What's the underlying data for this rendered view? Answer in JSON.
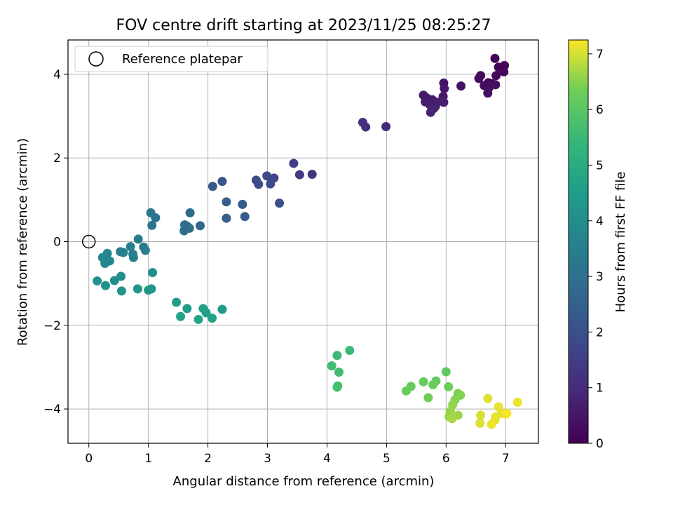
{
  "chart_data": {
    "type": "scatter",
    "title": "FOV centre drift starting at 2023/11/25 08:25:27",
    "xlabel": "Angular distance from reference (arcmin)",
    "ylabel": "Rotation from reference (arcmin)",
    "xlim": [
      -0.35,
      7.55
    ],
    "ylim": [
      -4.82,
      4.82
    ],
    "xticks": [
      0,
      1,
      2,
      3,
      4,
      5,
      6,
      7
    ],
    "yticks": [
      -4,
      -2,
      0,
      2,
      4
    ],
    "grid": true,
    "colormap": "viridis",
    "colorbar": {
      "label": "Hours from first FF file",
      "range": [
        0,
        7.25
      ],
      "ticks": [
        0,
        1,
        2,
        3,
        4,
        5,
        6,
        7
      ]
    },
    "legend": {
      "placement": "top-left",
      "entries": [
        "Reference platepar"
      ]
    },
    "reference": {
      "x": 0,
      "y": 0,
      "label": "Reference platepar"
    },
    "points": [
      {
        "x": 6.82,
        "y": 4.38,
        "c": 0.05
      },
      {
        "x": 6.98,
        "y": 4.21,
        "c": 0.08
      },
      {
        "x": 6.88,
        "y": 4.17,
        "c": 0.1
      },
      {
        "x": 6.97,
        "y": 4.06,
        "c": 0.12
      },
      {
        "x": 6.84,
        "y": 3.97,
        "c": 0.15
      },
      {
        "x": 6.58,
        "y": 3.97,
        "c": 0.18
      },
      {
        "x": 6.55,
        "y": 3.9,
        "c": 0.2
      },
      {
        "x": 6.71,
        "y": 3.8,
        "c": 0.22
      },
      {
        "x": 6.64,
        "y": 3.73,
        "c": 0.25
      },
      {
        "x": 6.77,
        "y": 3.78,
        "c": 0.27
      },
      {
        "x": 6.83,
        "y": 3.75,
        "c": 0.3
      },
      {
        "x": 6.72,
        "y": 3.68,
        "c": 0.32
      },
      {
        "x": 6.7,
        "y": 3.55,
        "c": 0.35
      },
      {
        "x": 6.25,
        "y": 3.72,
        "c": 0.4
      },
      {
        "x": 5.96,
        "y": 3.79,
        "c": 0.45
      },
      {
        "x": 5.97,
        "y": 3.66,
        "c": 0.48
      },
      {
        "x": 5.95,
        "y": 3.47,
        "c": 0.5
      },
      {
        "x": 5.62,
        "y": 3.5,
        "c": 0.55
      },
      {
        "x": 5.68,
        "y": 3.43,
        "c": 0.58
      },
      {
        "x": 5.77,
        "y": 3.39,
        "c": 0.6
      },
      {
        "x": 5.65,
        "y": 3.34,
        "c": 0.62
      },
      {
        "x": 5.85,
        "y": 3.33,
        "c": 0.65
      },
      {
        "x": 5.96,
        "y": 3.33,
        "c": 0.68
      },
      {
        "x": 5.73,
        "y": 3.27,
        "c": 0.7
      },
      {
        "x": 5.82,
        "y": 3.23,
        "c": 0.72
      },
      {
        "x": 5.79,
        "y": 3.18,
        "c": 0.75
      },
      {
        "x": 5.74,
        "y": 3.09,
        "c": 0.78
      },
      {
        "x": 4.6,
        "y": 2.85,
        "c": 1.1
      },
      {
        "x": 4.65,
        "y": 2.74,
        "c": 1.12
      },
      {
        "x": 4.99,
        "y": 2.75,
        "c": 1.0
      },
      {
        "x": 3.44,
        "y": 1.87,
        "c": 1.5
      },
      {
        "x": 3.54,
        "y": 1.6,
        "c": 1.4
      },
      {
        "x": 3.75,
        "y": 1.61,
        "c": 1.35
      },
      {
        "x": 2.99,
        "y": 1.57,
        "c": 1.8
      },
      {
        "x": 3.11,
        "y": 1.52,
        "c": 1.75
      },
      {
        "x": 2.81,
        "y": 1.47,
        "c": 1.9
      },
      {
        "x": 2.85,
        "y": 1.37,
        "c": 1.95
      },
      {
        "x": 3.05,
        "y": 1.38,
        "c": 1.85
      },
      {
        "x": 2.24,
        "y": 1.44,
        "c": 2.2
      },
      {
        "x": 2.08,
        "y": 1.32,
        "c": 2.3
      },
      {
        "x": 2.31,
        "y": 0.95,
        "c": 2.4
      },
      {
        "x": 3.2,
        "y": 0.92,
        "c": 2.0
      },
      {
        "x": 2.58,
        "y": 0.89,
        "c": 2.3
      },
      {
        "x": 2.62,
        "y": 0.6,
        "c": 2.35
      },
      {
        "x": 2.31,
        "y": 0.56,
        "c": 2.45
      },
      {
        "x": 1.7,
        "y": 0.69,
        "c": 2.8
      },
      {
        "x": 1.04,
        "y": 0.69,
        "c": 3.2
      },
      {
        "x": 1.12,
        "y": 0.57,
        "c": 3.1
      },
      {
        "x": 1.06,
        "y": 0.39,
        "c": 3.15
      },
      {
        "x": 1.61,
        "y": 0.4,
        "c": 2.9
      },
      {
        "x": 1.65,
        "y": 0.37,
        "c": 2.85
      },
      {
        "x": 1.87,
        "y": 0.38,
        "c": 2.75
      },
      {
        "x": 1.69,
        "y": 0.32,
        "c": 2.95
      },
      {
        "x": 1.6,
        "y": 0.26,
        "c": 2.9
      },
      {
        "x": 0.83,
        "y": 0.06,
        "c": 3.3
      },
      {
        "x": 0.92,
        "y": -0.13,
        "c": 3.4
      },
      {
        "x": 0.7,
        "y": -0.12,
        "c": 3.5
      },
      {
        "x": 0.95,
        "y": -0.21,
        "c": 3.45
      },
      {
        "x": 0.53,
        "y": -0.24,
        "c": 3.6
      },
      {
        "x": 0.58,
        "y": -0.26,
        "c": 3.55
      },
      {
        "x": 0.74,
        "y": -0.3,
        "c": 3.5
      },
      {
        "x": 0.75,
        "y": -0.38,
        "c": 3.55
      },
      {
        "x": 0.31,
        "y": -0.28,
        "c": 3.7
      },
      {
        "x": 0.23,
        "y": -0.38,
        "c": 3.75
      },
      {
        "x": 0.35,
        "y": -0.46,
        "c": 3.8
      },
      {
        "x": 0.27,
        "y": -0.52,
        "c": 3.85
      },
      {
        "x": 1.07,
        "y": -0.74,
        "c": 4.0
      },
      {
        "x": 0.54,
        "y": -0.83,
        "c": 4.05
      },
      {
        "x": 0.14,
        "y": -0.94,
        "c": 4.1
      },
      {
        "x": 0.43,
        "y": -0.93,
        "c": 4.05
      },
      {
        "x": 0.28,
        "y": -1.05,
        "c": 4.15
      },
      {
        "x": 0.82,
        "y": -1.13,
        "c": 4.2
      },
      {
        "x": 1.05,
        "y": -1.13,
        "c": 4.25
      },
      {
        "x": 1.0,
        "y": -1.16,
        "c": 4.3
      },
      {
        "x": 0.55,
        "y": -1.18,
        "c": 4.2
      },
      {
        "x": 1.47,
        "y": -1.45,
        "c": 4.5
      },
      {
        "x": 1.65,
        "y": -1.6,
        "c": 4.55
      },
      {
        "x": 1.92,
        "y": -1.6,
        "c": 4.6
      },
      {
        "x": 2.24,
        "y": -1.62,
        "c": 4.45
      },
      {
        "x": 1.97,
        "y": -1.7,
        "c": 4.65
      },
      {
        "x": 1.54,
        "y": -1.79,
        "c": 4.7
      },
      {
        "x": 2.07,
        "y": -1.83,
        "c": 4.7
      },
      {
        "x": 1.84,
        "y": -1.86,
        "c": 4.75
      },
      {
        "x": 4.38,
        "y": -2.6,
        "c": 5.5
      },
      {
        "x": 4.17,
        "y": -2.72,
        "c": 5.55
      },
      {
        "x": 4.08,
        "y": -2.97,
        "c": 5.6
      },
      {
        "x": 4.2,
        "y": -3.12,
        "c": 5.65
      },
      {
        "x": 4.18,
        "y": -3.45,
        "c": 5.7
      },
      {
        "x": 4.17,
        "y": -3.48,
        "c": 5.72
      },
      {
        "x": 6.0,
        "y": -3.11,
        "c": 6.1
      },
      {
        "x": 5.83,
        "y": -3.33,
        "c": 6.15
      },
      {
        "x": 5.62,
        "y": -3.35,
        "c": 6.2
      },
      {
        "x": 5.78,
        "y": -3.42,
        "c": 6.25
      },
      {
        "x": 5.41,
        "y": -3.46,
        "c": 6.2
      },
      {
        "x": 6.04,
        "y": -3.47,
        "c": 6.3
      },
      {
        "x": 5.33,
        "y": -3.57,
        "c": 6.25
      },
      {
        "x": 6.2,
        "y": -3.63,
        "c": 6.4
      },
      {
        "x": 6.24,
        "y": -3.67,
        "c": 6.45
      },
      {
        "x": 5.7,
        "y": -3.73,
        "c": 6.35
      },
      {
        "x": 6.15,
        "y": -3.78,
        "c": 6.5
      },
      {
        "x": 6.11,
        "y": -3.9,
        "c": 6.55
      },
      {
        "x": 6.07,
        "y": -4.05,
        "c": 6.6
      },
      {
        "x": 6.05,
        "y": -4.18,
        "c": 6.6
      },
      {
        "x": 6.13,
        "y": -4.17,
        "c": 6.65
      },
      {
        "x": 6.2,
        "y": -4.15,
        "c": 6.65
      },
      {
        "x": 6.1,
        "y": -4.23,
        "c": 6.7
      },
      {
        "x": 6.7,
        "y": -3.75,
        "c": 7.05
      },
      {
        "x": 6.88,
        "y": -3.95,
        "c": 7.1
      },
      {
        "x": 7.2,
        "y": -3.84,
        "c": 7.15
      },
      {
        "x": 6.93,
        "y": -4.1,
        "c": 7.1
      },
      {
        "x": 7.0,
        "y": -4.12,
        "c": 7.15
      },
      {
        "x": 7.02,
        "y": -4.11,
        "c": 7.2
      },
      {
        "x": 6.58,
        "y": -4.15,
        "c": 7.0
      },
      {
        "x": 6.83,
        "y": -4.19,
        "c": 7.1
      },
      {
        "x": 6.82,
        "y": -4.27,
        "c": 7.12
      },
      {
        "x": 6.57,
        "y": -4.34,
        "c": 7.05
      },
      {
        "x": 6.76,
        "y": -4.37,
        "c": 7.15
      }
    ]
  }
}
